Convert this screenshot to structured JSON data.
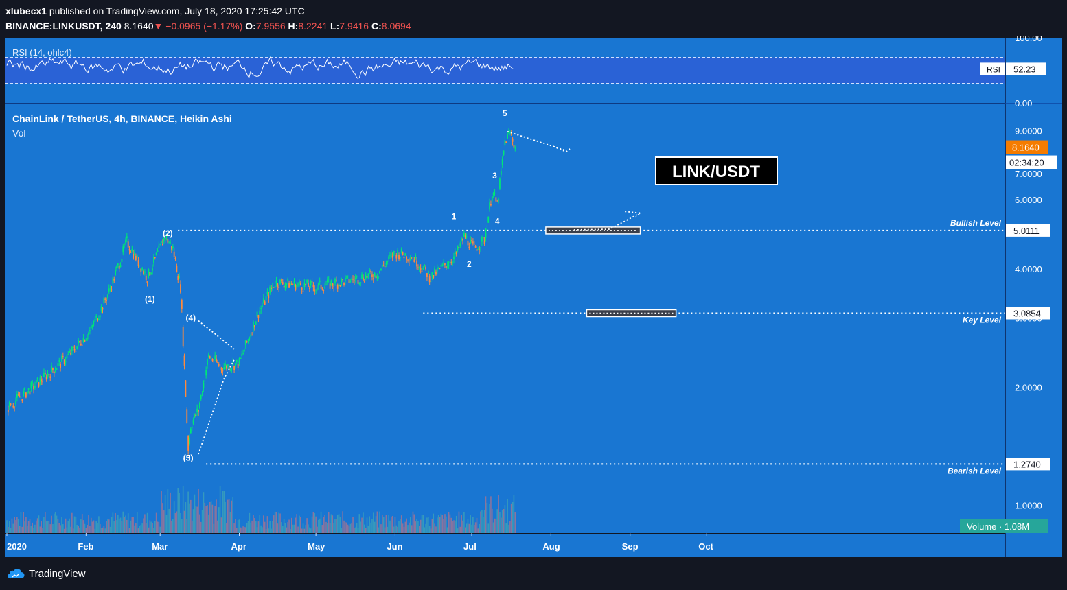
{
  "header": {
    "author": "xlubecx1",
    "published_text": "published on TradingView.com, July 18, 2020 17:25:42 UTC",
    "symbol": "BINANCE:LINKUSDT, 240",
    "last": "8.1640",
    "change": "−0.0965 (−1.17%)",
    "open_label": "O:",
    "open": "7.9556",
    "high_label": "H:",
    "high": "8.2241",
    "low_label": "L:",
    "low": "7.9416",
    "close_label": "C:",
    "close": "8.0694"
  },
  "colors": {
    "chart_bg": "#1976d2",
    "rsi_band": "#2a62d6",
    "up": "#00e676",
    "down": "#ff8a3d",
    "price_tag": "#f57c00",
    "volume_tag": "#26a69a"
  },
  "chart_data": [
    {
      "type": "line",
      "title": "RSI (14, ohlc4)",
      "ylim": [
        0,
        100
      ],
      "y_ticks": [
        "100.00",
        "0.00"
      ],
      "bands": [
        30,
        70
      ],
      "last_label": "RSI",
      "last_value": 52.23,
      "last_value_text": "52.23"
    },
    {
      "type": "candlestick",
      "title": "ChainLink / TetherUS, 4h, BINANCE, Heikin Ashi",
      "subtitle": "Vol",
      "scale": "log",
      "ylim": [
        0.85,
        10.5
      ],
      "y_ticks": [
        "9.0000",
        "7.0000",
        "6.0000",
        "4.0000",
        "3.0000",
        "2.0000",
        "1.0000"
      ],
      "x_ticks": [
        "2020",
        "Feb",
        "Mar",
        "Apr",
        "May",
        "Jun",
        "Jul",
        "Aug",
        "Sep",
        "Oct"
      ],
      "x": [
        "2020-01-01",
        "2020-01-15",
        "2020-01-25",
        "2020-02-03",
        "2020-02-10",
        "2020-02-17",
        "2020-02-25",
        "2020-03-03",
        "2020-03-06",
        "2020-03-09",
        "2020-03-12",
        "2020-03-13",
        "2020-03-16",
        "2020-03-20",
        "2020-03-25",
        "2020-04-01",
        "2020-04-08",
        "2020-04-15",
        "2020-05-01",
        "2020-05-15",
        "2020-05-25",
        "2020-06-01",
        "2020-06-08",
        "2020-06-15",
        "2020-06-25",
        "2020-06-28",
        "2020-07-02",
        "2020-07-06",
        "2020-07-09",
        "2020-07-11",
        "2020-07-14",
        "2020-07-16",
        "2020-07-18"
      ],
      "close": [
        1.77,
        2.1,
        2.4,
        2.8,
        3.5,
        4.7,
        3.8,
        4.85,
        4.5,
        3.6,
        1.4,
        1.6,
        1.75,
        2.4,
        2.25,
        2.3,
        3.05,
        3.7,
        3.6,
        3.75,
        3.9,
        4.4,
        4.3,
        3.8,
        4.35,
        4.85,
        4.5,
        4.75,
        6.3,
        5.8,
        8.45,
        8.9,
        8.164
      ],
      "last_value_text": "8.1640",
      "countdown": "02:34:20",
      "volume_label": "Volume",
      "volume_value": "1.08M",
      "levels": [
        {
          "name": "Bullish Level",
          "value": 5.0111,
          "value_text": "5.0111"
        },
        {
          "name": "Key Level",
          "value": 3.0854,
          "value_text": "3.0854"
        },
        {
          "name": "Bearish Level",
          "value": 1.274,
          "value_text": "1.2740"
        }
      ],
      "wave_labels": [
        {
          "text": "(1)",
          "x": "2020-02-26",
          "y": 3.3
        },
        {
          "text": "(2)",
          "x": "2020-03-04",
          "y": 4.85
        },
        {
          "text": "(3)",
          "x": "2020-03-12",
          "y": 1.3
        },
        {
          "text": "(4)",
          "x": "2020-03-13",
          "y": 2.95
        },
        {
          "text": "(5)",
          "x": "2020-03-12",
          "y": 1.3
        },
        {
          "text": "1",
          "x": "2020-06-24",
          "y": 5.35
        },
        {
          "text": "2",
          "x": "2020-06-30",
          "y": 4.05
        },
        {
          "text": "3",
          "x": "2020-07-10",
          "y": 6.8
        },
        {
          "text": "4",
          "x": "2020-07-11",
          "y": 5.2
        },
        {
          "text": "5",
          "x": "2020-07-14",
          "y": 9.8
        }
      ],
      "annotation": "LINK/USDT"
    }
  ]
}
